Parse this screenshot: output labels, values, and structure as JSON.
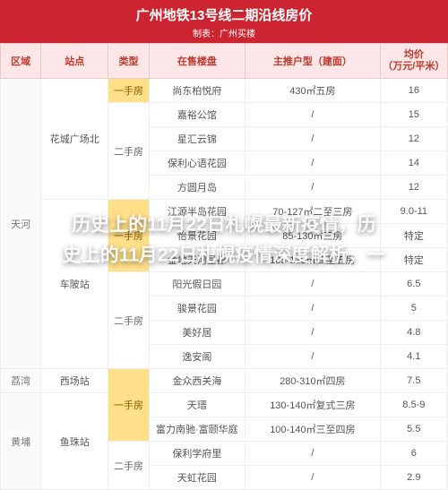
{
  "header": {
    "title": "广州地铁13号线二期沿线房价",
    "subtitle": "制表：广州买楼"
  },
  "columns": {
    "region": "区域",
    "station": "站点",
    "type": "类型",
    "project": "在售楼盘",
    "unit": "主推户型（建面）",
    "price": "均价\n（万元/平米）"
  },
  "type_labels": {
    "primary": "一手房",
    "secondary": "二手房"
  },
  "regions": {
    "tianhe": "天河",
    "liwan": "荔湾",
    "huangpu": "黄埔"
  },
  "stations": {
    "huacheng": "花城广场北",
    "chebei": "车陂站",
    "xichang": "西场站",
    "zhuzhu": "鱼珠站"
  },
  "rows": [
    {
      "project": "尚东柏悦府",
      "unit": "430㎡五房",
      "price": "16"
    },
    {
      "project": "嘉裕公馆",
      "unit": "/",
      "price": "15"
    },
    {
      "project": "星汇云锦",
      "unit": "/",
      "price": "12"
    },
    {
      "project": "保利心语花园",
      "unit": "/",
      "price": "14"
    },
    {
      "project": "方圆月岛",
      "unit": "/",
      "price": "12"
    },
    {
      "project": "江源半岛花园",
      "unit": "70-127㎡二至三房",
      "price": "9.0-11"
    },
    {
      "project": "怡景花园",
      "unit": "85-130㎡三房",
      "price": "特定"
    },
    {
      "project": "金地天河星都",
      "unit": "105-130㎡四至五房",
      "price": "特定"
    },
    {
      "project": "阳光假日园",
      "unit": "/",
      "price": "6.5"
    },
    {
      "project": "骏景花园",
      "unit": "/",
      "price": "5"
    },
    {
      "project": "美好居",
      "unit": "/",
      "price": "4.8"
    },
    {
      "project": "逸安阁",
      "unit": "/",
      "price": "4.1"
    },
    {
      "project": "金众西关海",
      "unit": "280-310㎡四房",
      "price": "7.5"
    },
    {
      "project": "天瑨",
      "unit": "130-140㎡复式三房",
      "price": "8.5-9"
    },
    {
      "project": "富力南驰·富颐华庭",
      "unit": "100-140㎡三至四房",
      "price": "5.5"
    },
    {
      "project": "保利学府里",
      "unit": "/",
      "price": "6"
    },
    {
      "project": "天虹花园",
      "unit": "/",
      "price": "2.9"
    }
  ],
  "overlay": {
    "line1": "历史上的11月22日札幌最新疫情，历",
    "line2": "史上的11月22日札幌疫情深度解析，一"
  },
  "colors": {
    "header_bg": "#cc2531",
    "header_fg": "#ffffff",
    "th_bg": "#fde6e7",
    "th_fg": "#c0392b",
    "primary_bg": "#ffe08a",
    "cell_border": "#eeeeee"
  }
}
